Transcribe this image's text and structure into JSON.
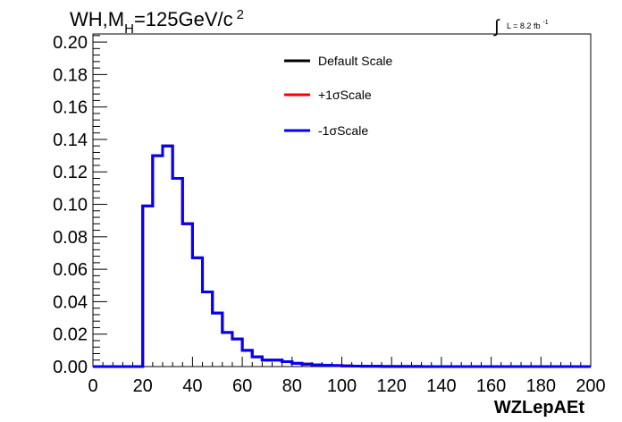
{
  "chart_data": {
    "type": "histogram",
    "title": {
      "prefix": "WH,M",
      "subscript": "H",
      "suffix": "=125GeV/c",
      "superscript": "2"
    },
    "lumi": {
      "integral_symbol": "∫",
      "label": "L = 8.2 fb",
      "superscript": "-1"
    },
    "xlabel": "WZLepAEt",
    "ylabel": "",
    "xlim": [
      0,
      200
    ],
    "ylim": [
      0,
      0.205
    ],
    "grid": false,
    "legend_position": "top-center",
    "x_ticks": [
      {
        "value": 0,
        "label": "0"
      },
      {
        "value": 20,
        "label": "20"
      },
      {
        "value": 40,
        "label": "40"
      },
      {
        "value": 60,
        "label": "60"
      },
      {
        "value": 80,
        "label": "80"
      },
      {
        "value": 100,
        "label": "100"
      },
      {
        "value": 120,
        "label": "120"
      },
      {
        "value": 140,
        "label": "140"
      },
      {
        "value": 160,
        "label": "160"
      },
      {
        "value": 180,
        "label": "180"
      },
      {
        "value": 200,
        "label": "200"
      }
    ],
    "y_ticks": [
      {
        "value": 0.0,
        "label": "0.00"
      },
      {
        "value": 0.02,
        "label": "0.02"
      },
      {
        "value": 0.04,
        "label": "0.04"
      },
      {
        "value": 0.06,
        "label": "0.06"
      },
      {
        "value": 0.08,
        "label": "0.08"
      },
      {
        "value": 0.1,
        "label": "0.10"
      },
      {
        "value": 0.12,
        "label": "0.12"
      },
      {
        "value": 0.14,
        "label": "0.14"
      },
      {
        "value": 0.16,
        "label": "0.16"
      },
      {
        "value": 0.18,
        "label": "0.18"
      },
      {
        "value": 0.2,
        "label": "0.20"
      }
    ],
    "bin_edges": [
      0,
      4,
      8,
      12,
      16,
      20,
      24,
      28,
      32,
      36,
      40,
      44,
      48,
      52,
      56,
      60,
      64,
      68,
      72,
      76,
      80,
      84,
      88,
      92,
      96,
      100,
      104,
      108,
      112,
      116,
      120,
      124,
      128,
      132,
      136,
      140,
      144,
      148,
      152,
      156,
      160,
      164,
      168,
      172,
      176,
      180,
      184,
      188,
      192,
      196,
      200
    ],
    "series": [
      {
        "name": "Default Scale",
        "color": "#000000",
        "values": [
          0,
          0,
          0,
          0,
          0,
          0.099,
          0.13,
          0.136,
          0.116,
          0.088,
          0.067,
          0.046,
          0.033,
          0.021,
          0.017,
          0.01,
          0.006,
          0.004,
          0.004,
          0.003,
          0.002,
          0.0015,
          0.001,
          0.0008,
          0.0006,
          0.0004,
          0.0003,
          0.0002,
          0.0002,
          0.0001,
          0.0001,
          0.0001,
          0.0001,
          0,
          0,
          0,
          0,
          0,
          0,
          0,
          0,
          0,
          0,
          0,
          0,
          0,
          0,
          0,
          0,
          0
        ]
      },
      {
        "name": "+1σScale",
        "color": "#ff0000",
        "values": [
          0,
          0,
          0,
          0,
          0,
          0.099,
          0.13,
          0.136,
          0.116,
          0.088,
          0.067,
          0.046,
          0.033,
          0.021,
          0.017,
          0.01,
          0.006,
          0.004,
          0.004,
          0.003,
          0.002,
          0.0015,
          0.001,
          0.0008,
          0.0006,
          0.0004,
          0.0003,
          0.0002,
          0.0002,
          0.0001,
          0.0001,
          0.0001,
          0.0001,
          0,
          0,
          0,
          0,
          0,
          0,
          0,
          0,
          0,
          0,
          0,
          0,
          0,
          0,
          0,
          0,
          0
        ]
      },
      {
        "name": "-1σScale",
        "color": "#0000ff",
        "values": [
          0,
          0,
          0,
          0,
          0,
          0.099,
          0.13,
          0.136,
          0.116,
          0.088,
          0.067,
          0.046,
          0.033,
          0.021,
          0.017,
          0.01,
          0.006,
          0.004,
          0.004,
          0.003,
          0.002,
          0.0015,
          0.001,
          0.0008,
          0.0006,
          0.0004,
          0.0003,
          0.0002,
          0.0002,
          0.0001,
          0.0001,
          0.0001,
          0.0001,
          0,
          0,
          0,
          0,
          0,
          0,
          0,
          0,
          0,
          0,
          0,
          0,
          0,
          0,
          0,
          0,
          0
        ]
      }
    ]
  }
}
